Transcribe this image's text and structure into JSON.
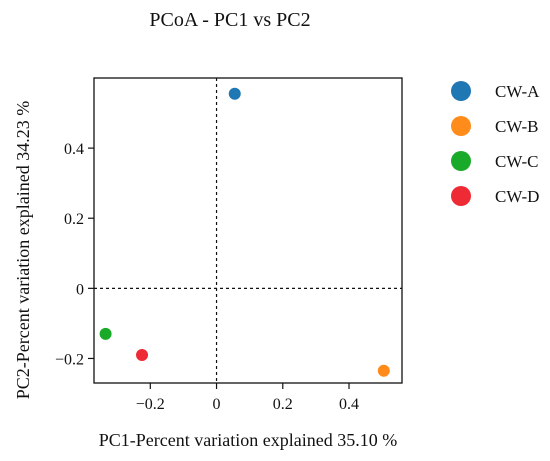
{
  "chart_data": {
    "type": "scatter",
    "title": "PCoA - PC1 vs PC2",
    "xlabel": "PC1-Percent variation explained 35.10 %",
    "ylabel": "PC2-Percent variation explained 34.23 %",
    "xlim": [
      -0.37,
      0.56
    ],
    "ylim": [
      -0.27,
      0.6
    ],
    "x_ticks": [
      {
        "value": -0.2,
        "label": "−0.2"
      },
      {
        "value": 0,
        "label": "0"
      },
      {
        "value": 0.2,
        "label": "0.2"
      },
      {
        "value": 0.4,
        "label": "0.4"
      }
    ],
    "y_ticks": [
      {
        "value": -0.2,
        "label": "−0.2"
      },
      {
        "value": 0,
        "label": "0"
      },
      {
        "value": 0.2,
        "label": "0.2"
      },
      {
        "value": 0.4,
        "label": "0.4"
      }
    ],
    "reference_lines": {
      "x": 0,
      "y": 0,
      "style": "dashed"
    },
    "grid": false,
    "legend": {
      "position": "right"
    },
    "series": [
      {
        "name": "CW-A",
        "color": "#1f77b4",
        "points": [
          {
            "x": 0.055,
            "y": 0.555
          }
        ]
      },
      {
        "name": "CW-B",
        "color": "#ff8c1a",
        "points": [
          {
            "x": 0.505,
            "y": -0.235
          }
        ]
      },
      {
        "name": "CW-C",
        "color": "#1aaa2a",
        "points": [
          {
            "x": -0.335,
            "y": -0.13
          }
        ]
      },
      {
        "name": "CW-D",
        "color": "#ee2a34",
        "points": [
          {
            "x": -0.225,
            "y": -0.19
          }
        ]
      }
    ]
  }
}
